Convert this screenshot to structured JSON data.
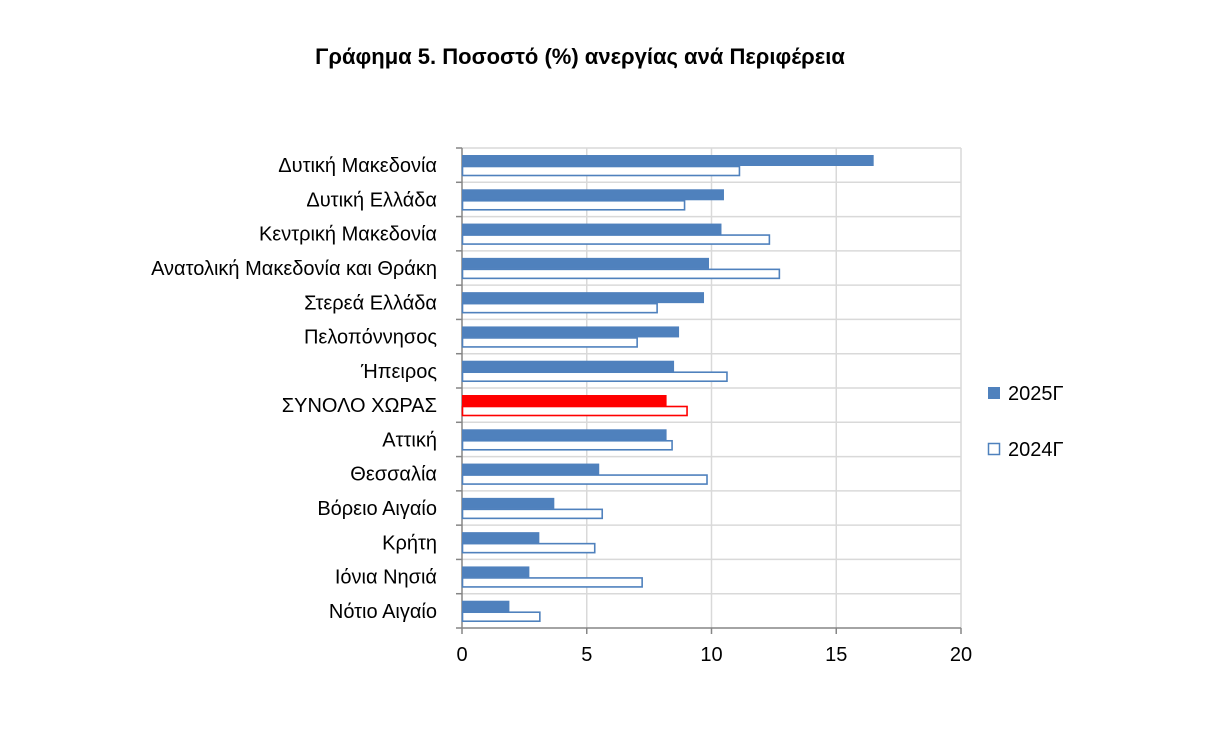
{
  "chart_data": {
    "type": "bar",
    "orientation": "horizontal",
    "title": "Γράφημα 5. Ποσοστό (%) ανεργίας ανά Περιφέρεια",
    "xlabel": "",
    "ylabel": "",
    "xlim": [
      0,
      20
    ],
    "xticks": [
      0,
      5,
      10,
      15,
      20
    ],
    "grid": true,
    "legend_position": "right",
    "categories": [
      "Δυτική Μακεδονία",
      "Δυτική Ελλάδα",
      "Κεντρική Μακεδονία",
      "Ανατολική Μακεδονία και Θράκη",
      "Στερεά Ελλάδα",
      "Πελοπόννησος",
      "Ήπειρος",
      "ΣΥΝΟΛΟ ΧΩΡΑΣ",
      "Αττική",
      "Θεσσαλία",
      "Βόρειο Αιγαίο",
      "Κρήτη",
      "Ιόνια Νησιά",
      "Νότιο Αιγαίο"
    ],
    "highlight_category": "ΣΥΝΟΛΟ ΧΩΡΑΣ",
    "series": [
      {
        "name": "2025Γ",
        "style": "filled",
        "color": "#4f81bd",
        "values": [
          16.5,
          10.5,
          10.4,
          9.9,
          9.7,
          8.7,
          8.5,
          8.2,
          8.2,
          5.5,
          3.7,
          3.1,
          2.7,
          1.9
        ]
      },
      {
        "name": "2024Γ",
        "style": "outline",
        "color": "#4f81bd",
        "values": [
          11.1,
          8.9,
          12.3,
          12.7,
          7.8,
          7.0,
          10.6,
          9.0,
          8.4,
          9.8,
          5.6,
          5.3,
          7.2,
          3.1
        ]
      }
    ],
    "highlight_color": "#ff0000"
  }
}
